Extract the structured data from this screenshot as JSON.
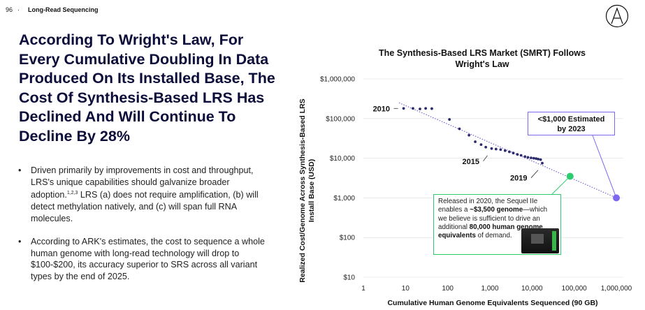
{
  "header": {
    "page_number": "96",
    "separator": "·",
    "section": "Long-Read Sequencing",
    "logo_icon": "ark-logo-icon"
  },
  "headline": "According To Wright's Law, For Every Cumulative Doubling In Data Produced On Its Installed Base, The Cost Of Synthesis-Based LRS Has Declined And Will Continue To Decline By 28%",
  "bullets": [
    {
      "text_a": "Driven primarily by improvements in cost and throughput, LRS's unique capabilities should galvanize broader adoption.",
      "sup": "1,2,3",
      "text_b": " LRS (a) does not require amplification, (b) will detect methylation natively, and (c) will span full RNA molecules."
    },
    {
      "text": "According to ARK's estimates, the cost to sequence a whole human genome with long-read technology will drop to $100-$200, its accuracy superior to SRS across all variant types by the end of 2025."
    }
  ],
  "chart_data": {
    "type": "scatter",
    "title": "The Synthesis-Based LRS Market (SMRT) Follows Wright's Law",
    "xlabel": "Cumulative Human Genome Equivalents Sequenced (90 GB)",
    "ylabel": "Realized Cost/Genome Across Synthesis-Based LRS Install Base (USD)",
    "x_scale": "log",
    "y_scale": "log",
    "xlim": [
      1,
      1000000
    ],
    "ylim": [
      10,
      1000000
    ],
    "x_ticks": [
      "1",
      "10",
      "100",
      "1,000",
      "10,000",
      "100,000",
      "1,000,000"
    ],
    "y_ticks": [
      "$10",
      "$100",
      "$1,000",
      "$10,000",
      "$100,000",
      "$1,000,000"
    ],
    "series": [
      {
        "points": [
          [
            9,
            180000
          ],
          [
            15,
            180000
          ],
          [
            22,
            175000
          ],
          [
            30,
            180000
          ],
          [
            42,
            178000
          ],
          [
            110,
            95000
          ],
          [
            190,
            55000
          ],
          [
            320,
            38000
          ],
          [
            450,
            26000
          ],
          [
            620,
            22000
          ],
          [
            800,
            19000
          ],
          [
            1100,
            17500
          ],
          [
            1400,
            17000
          ],
          [
            1800,
            16500
          ],
          [
            2300,
            15500
          ],
          [
            2900,
            14500
          ],
          [
            3600,
            13500
          ],
          [
            4500,
            12500
          ],
          [
            5500,
            11800
          ],
          [
            6800,
            11000
          ],
          [
            8000,
            10500
          ],
          [
            9500,
            10200
          ],
          [
            11000,
            10000
          ],
          [
            12500,
            9800
          ],
          [
            14000,
            9500
          ],
          [
            16000,
            9200
          ],
          [
            17500,
            7500
          ]
        ]
      }
    ],
    "trend_line": [
      [
        7,
        250000
      ],
      [
        1000000,
        1000
      ]
    ],
    "highlight_points": [
      {
        "x": 80000,
        "y": 3500,
        "color": "#2ecc71"
      },
      {
        "x": 1000000,
        "y": 1000,
        "color": "#7b68ee"
      }
    ],
    "annotations": [
      {
        "label": "2010",
        "x": 9,
        "y": 180000
      },
      {
        "label": "2015",
        "x": 1100,
        "y": 17500
      },
      {
        "label": "2019",
        "x": 17500,
        "y": 7500
      }
    ],
    "callout_estimate": {
      "line1": "<$1,000 Estimated",
      "line2": "by 2023"
    },
    "callout_sequel": {
      "t1": "Released in 2020, the Sequel IIe enables a ",
      "b1": "~$3,500 genome",
      "t2": "—which we believe is sufficient to drive an additional ",
      "b2": "80,000 human genome equivalents",
      "t3": " of demand."
    },
    "colors": {
      "points": "#2b2b6e",
      "trend": "#6a5acd",
      "green": "#2ecc71",
      "purple": "#7b68ee"
    }
  }
}
